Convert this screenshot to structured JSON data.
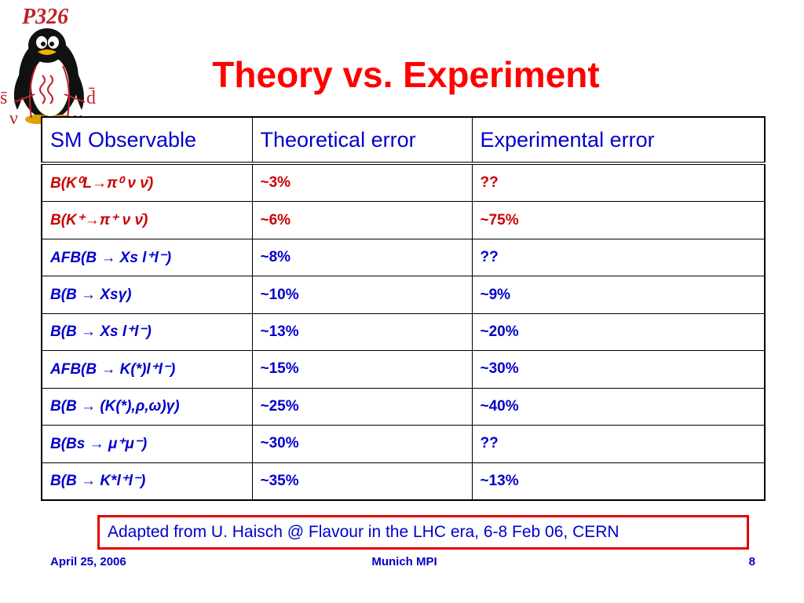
{
  "logo": {
    "title": "P326",
    "left_top_symbol": "s̄",
    "left_bottom_symbol": "ν",
    "right_top_symbol": "d̄",
    "right_bottom_symbol": "ν",
    "icon": "penguin-icon"
  },
  "title": "Theory vs. Experiment",
  "table": {
    "headers": [
      "SM Observable",
      "Theoretical error",
      "Experimental error"
    ],
    "rows": [
      {
        "observable": "B(K⁰L→π⁰ ν ν̄)",
        "theoretical": "~3%",
        "experimental": "??",
        "color": "red"
      },
      {
        "observable": "B(K⁺→π⁺ ν ν̄)",
        "theoretical": "~6%",
        "experimental": "~75%",
        "color": "red"
      },
      {
        "observable": "AFB(B → Xs l⁺l⁻)",
        "theoretical": "~8%",
        "experimental": "??",
        "color": "blue"
      },
      {
        "observable": "B(B → Xsγ)",
        "theoretical": "~10%",
        "experimental": "~9%",
        "color": "blue"
      },
      {
        "observable": "B(B → Xs l⁺l⁻)",
        "theoretical": "~13%",
        "experimental": "~20%",
        "color": "blue"
      },
      {
        "observable": "AFB(B → K(*)l⁺l⁻)",
        "theoretical": "~15%",
        "experimental": "~30%",
        "color": "blue"
      },
      {
        "observable": "B(B → (K(*),ρ,ω)γ)",
        "theoretical": "~25%",
        "experimental": "~40%",
        "color": "blue"
      },
      {
        "observable": "B(Bs → μ⁺μ⁻)",
        "theoretical": "~30%",
        "experimental": "??",
        "color": "blue"
      },
      {
        "observable": "B(B → K*l⁺l⁻)",
        "theoretical": "~35%",
        "experimental": "~13%",
        "color": "blue"
      }
    ]
  },
  "caption": "Adapted from U. Haisch @ Flavour in the LHC era, 6-8 Feb 06, CERN",
  "footer": {
    "date": "April 25, 2006",
    "venue": "Munich MPI",
    "page": "8"
  },
  "colors": {
    "title": "#ff0000",
    "text_blue": "#0000cc",
    "kaon_red": "#cc0000",
    "caption_border": "#e00000"
  }
}
